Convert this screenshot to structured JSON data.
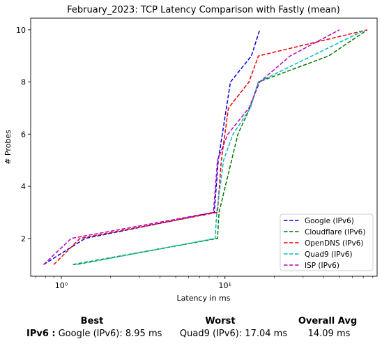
{
  "chart_data": {
    "type": "line",
    "title": "February_2023: TCP Latency Comparison with Fastly (mean)",
    "xlabel": "Latency in ms",
    "ylabel": "# Probes",
    "xscale": "log",
    "xlim": [
      0.65,
      85
    ],
    "ylim": [
      0.55,
      10.45
    ],
    "x_ticks": [
      {
        "value": 1,
        "label": "10⁰"
      },
      {
        "value": 10,
        "label": "10¹"
      }
    ],
    "y_ticks": [
      2,
      4,
      6,
      8,
      10
    ],
    "grid": false,
    "legend_position": "lower-right",
    "series": [
      {
        "name": "Google (IPv6)",
        "color": "#0000dd",
        "x": [
          0.78,
          1.4,
          8.6,
          9.1,
          10.8,
          14.5,
          16.3
        ],
        "y": [
          1,
          2,
          3,
          5,
          8,
          9,
          10
        ]
      },
      {
        "name": "Cloudflare (IPv6)",
        "color": "#007700",
        "x": [
          1.18,
          9.0,
          9.2,
          12.0,
          14.2,
          16.0,
          43.0,
          74.0
        ],
        "y": [
          1,
          2,
          3,
          6,
          7,
          8,
          9,
          10
        ]
      },
      {
        "name": "OpenDNS (IPv6)",
        "color": "#ee0000",
        "x": [
          0.9,
          1.3,
          9.0,
          9.5,
          10.5,
          14.0,
          16.0,
          74.0
        ],
        "y": [
          1,
          2,
          3,
          5,
          7,
          8,
          9,
          10
        ]
      },
      {
        "name": "Quad9 (IPv6)",
        "color": "#00bbbb",
        "x": [
          1.25,
          8.7,
          8.9,
          9.8,
          11.2,
          14.3,
          16.0,
          72.0
        ],
        "y": [
          1,
          2,
          3,
          5,
          6,
          7,
          8,
          10
        ]
      },
      {
        "name": "ISP (IPv6)",
        "color": "#bb00bb",
        "x": [
          0.78,
          1.15,
          8.5,
          9.0,
          10.4,
          14.0,
          16.3,
          25.0,
          50.0
        ],
        "y": [
          1,
          2,
          3,
          5,
          6,
          7,
          8,
          9,
          10
        ]
      }
    ]
  },
  "summary": {
    "best_header": "Best",
    "worst_header": "Worst",
    "avg_header": "Overall Avg",
    "row_label": "IPv6 :",
    "best_value": "Google (IPv6): 8.95 ms",
    "worst_value": "Quad9 (IPv6): 17.04 ms",
    "avg_value": "14.09 ms"
  }
}
